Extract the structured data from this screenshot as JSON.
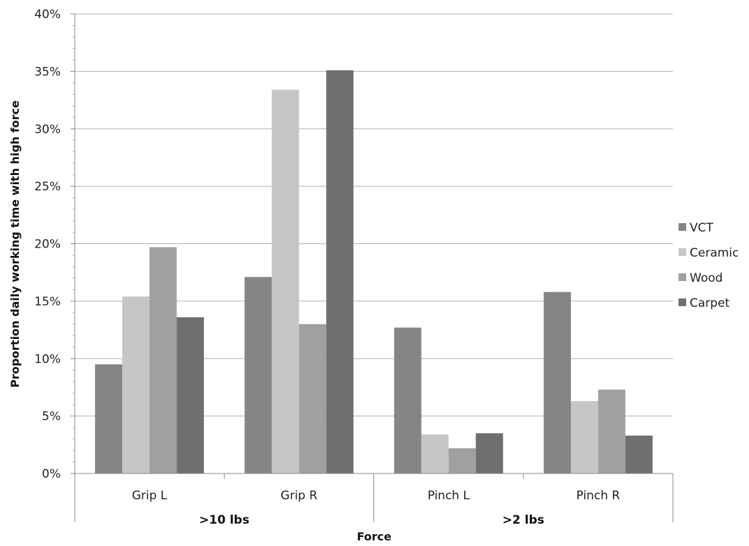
{
  "chart_data": {
    "type": "bar",
    "categories": [
      "Grip L",
      "Grip R",
      "Pinch L",
      "Pinch R"
    ],
    "category_groups": [
      {
        "label": ">10 lbs",
        "categories": [
          "Grip L",
          "Grip R"
        ]
      },
      {
        "label": ">2 lbs",
        "categories": [
          "Pinch L",
          "Pinch R"
        ]
      }
    ],
    "series": [
      {
        "name": "VCT",
        "color": "#858585",
        "values": [
          9.5,
          17.1,
          12.7,
          15.8
        ]
      },
      {
        "name": "Ceramic",
        "color": "#c6c6c6",
        "values": [
          15.4,
          33.4,
          3.4,
          6.3
        ]
      },
      {
        "name": "Wood",
        "color": "#a0a0a0",
        "values": [
          19.7,
          13.0,
          2.2,
          7.3
        ]
      },
      {
        "name": "Carpet",
        "color": "#6f6f6f",
        "values": [
          13.6,
          35.1,
          3.5,
          3.3
        ]
      }
    ],
    "xlabel": "Force",
    "ylabel": "Proportion daily working time with high force",
    "ylim": [
      0,
      40
    ],
    "yticks": [
      "0%",
      "5%",
      "10%",
      "15%",
      "20%",
      "25%",
      "30%",
      "35%",
      "40%"
    ],
    "grid": true,
    "legend_position": "right"
  }
}
